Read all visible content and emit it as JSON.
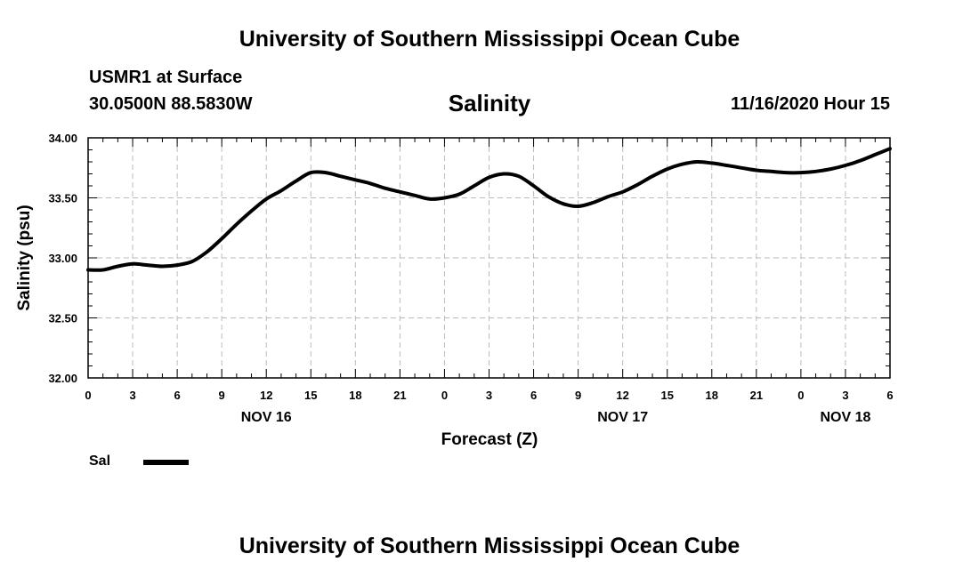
{
  "header": {
    "org_title": "University of Southern Mississippi Ocean Cube",
    "station": "USMR1 at Surface",
    "coords": "30.0500N 88.5830W",
    "variable": "Salinity",
    "run_time": "11/16/2020 Hour 15"
  },
  "footer": {
    "org_title": "University of Southern Mississippi Ocean Cube"
  },
  "legend": {
    "label": "Sal",
    "color": "#000000"
  },
  "chart_data": {
    "type": "line",
    "title": "Salinity",
    "xlabel": "Forecast (Z)",
    "ylabel": "Salinity (psu)",
    "xlim": [
      0,
      54
    ],
    "ylim": [
      32.0,
      34.0
    ],
    "grid": true,
    "x_ticks": [
      0,
      3,
      6,
      9,
      12,
      15,
      18,
      21,
      24,
      27,
      30,
      33,
      36,
      39,
      42,
      45,
      48,
      51,
      54
    ],
    "x_tick_labels": [
      "0",
      "3",
      "6",
      "9",
      "12",
      "15",
      "18",
      "21",
      "0",
      "3",
      "6",
      "9",
      "12",
      "15",
      "18",
      "21",
      "0",
      "3",
      "6"
    ],
    "y_ticks": [
      32.0,
      32.5,
      33.0,
      33.5,
      34.0
    ],
    "y_tick_labels": [
      "32.00",
      "32.50",
      "33.00",
      "33.50",
      "34.00"
    ],
    "date_labels": [
      {
        "x": 12,
        "label": "NOV 16"
      },
      {
        "x": 36,
        "label": "NOV 17"
      },
      {
        "x": 51,
        "label": "NOV 18"
      }
    ],
    "series": [
      {
        "name": "Sal",
        "x": [
          0,
          1,
          2,
          3,
          4,
          5,
          6,
          7,
          8,
          9,
          10,
          11,
          12,
          13,
          14,
          15,
          16,
          17,
          18,
          19,
          20,
          21,
          22,
          23,
          24,
          25,
          26,
          27,
          28,
          29,
          30,
          31,
          32,
          33,
          34,
          35,
          36,
          37,
          38,
          39,
          40,
          41,
          42,
          43,
          44,
          45,
          46,
          47,
          48,
          49,
          50,
          51,
          52,
          53,
          54
        ],
        "y": [
          32.9,
          32.9,
          32.93,
          32.95,
          32.94,
          32.93,
          32.94,
          32.97,
          33.05,
          33.16,
          33.28,
          33.39,
          33.49,
          33.56,
          33.64,
          33.71,
          33.71,
          33.68,
          33.65,
          33.62,
          33.58,
          33.55,
          33.52,
          33.49,
          33.5,
          33.53,
          33.6,
          33.67,
          33.7,
          33.68,
          33.6,
          33.51,
          33.45,
          33.43,
          33.46,
          33.51,
          33.55,
          33.61,
          33.68,
          33.74,
          33.78,
          33.8,
          33.79,
          33.77,
          33.75,
          33.73,
          33.72,
          33.71,
          33.71,
          33.72,
          33.74,
          33.77,
          33.81,
          33.86,
          33.91
        ]
      }
    ]
  }
}
